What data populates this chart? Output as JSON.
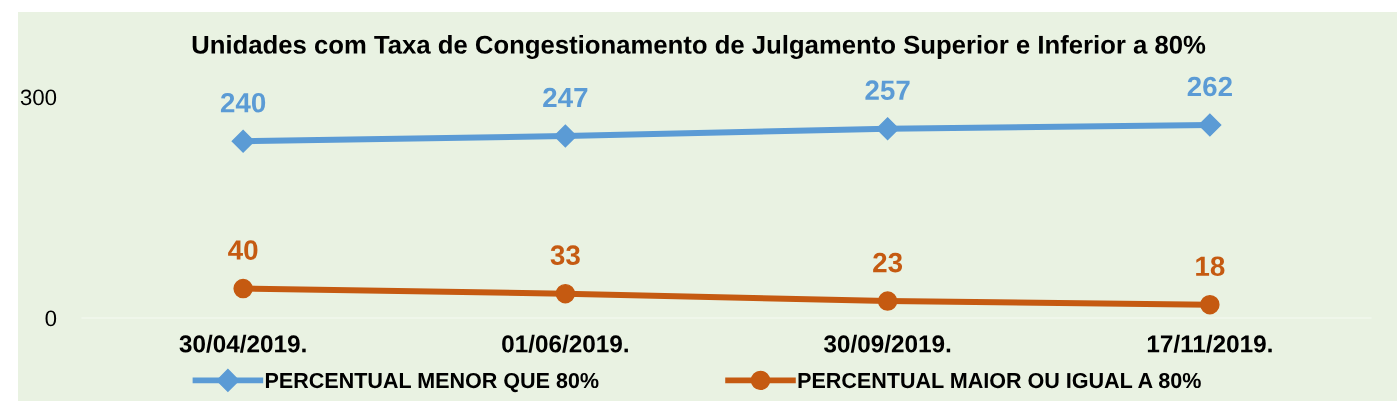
{
  "chart_data": {
    "type": "line",
    "title": "Unidades com Taxa de Congestionamento de Julgamento Superior e Inferior a 80%",
    "categories": [
      "30/04/2019.",
      "01/06/2019.",
      "30/09/2019.",
      "17/11/2019."
    ],
    "series": [
      {
        "name": "PERCENTUAL MENOR QUE 80%",
        "color": "#5b9bd5",
        "marker": "diamond",
        "values": [
          240,
          247,
          257,
          262
        ]
      },
      {
        "name": "PERCENTUAL MAIOR OU IGUAL A 80%",
        "color": "#c55a11",
        "marker": "circle",
        "values": [
          40,
          33,
          23,
          18
        ]
      }
    ],
    "ylim": [
      0,
      300
    ],
    "yticks": [
      0,
      300
    ],
    "data_labels": true,
    "legend": "bottom",
    "grid": false,
    "line_style": "solid"
  }
}
